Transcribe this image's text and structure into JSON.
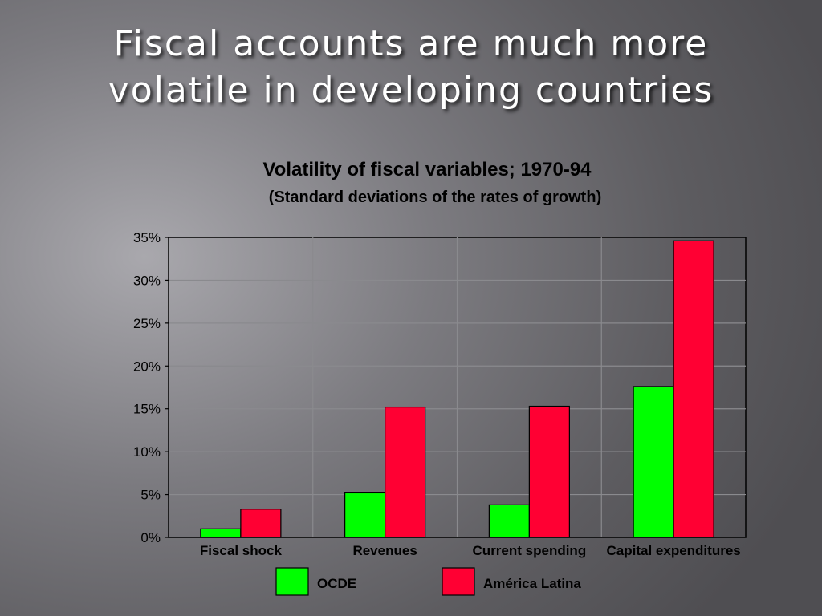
{
  "slide": {
    "title_line1": "Fiscal accounts are much more",
    "title_line2": "volatile in developing countries"
  },
  "chart_data": {
    "type": "bar",
    "title": "Volatility of fiscal variables; 1970-94",
    "subtitle": "(Standard deviations of the rates of growth)",
    "categories": [
      "Fiscal shock",
      "Revenues",
      "Current spending",
      "Capital expenditures"
    ],
    "series": [
      {
        "name": "OCDE",
        "values": [
          1.0,
          5.2,
          3.8,
          17.6
        ],
        "color": "#00ff00"
      },
      {
        "name": "América Latina",
        "values": [
          3.3,
          15.2,
          15.3,
          34.6
        ],
        "color": "#ff0033"
      }
    ],
    "y_ticks": [
      "0%",
      "5%",
      "10%",
      "15%",
      "20%",
      "25%",
      "30%",
      "35%"
    ],
    "ylim": [
      0,
      35
    ],
    "y_unit": "%",
    "grid": true,
    "legend_position": "bottom"
  }
}
